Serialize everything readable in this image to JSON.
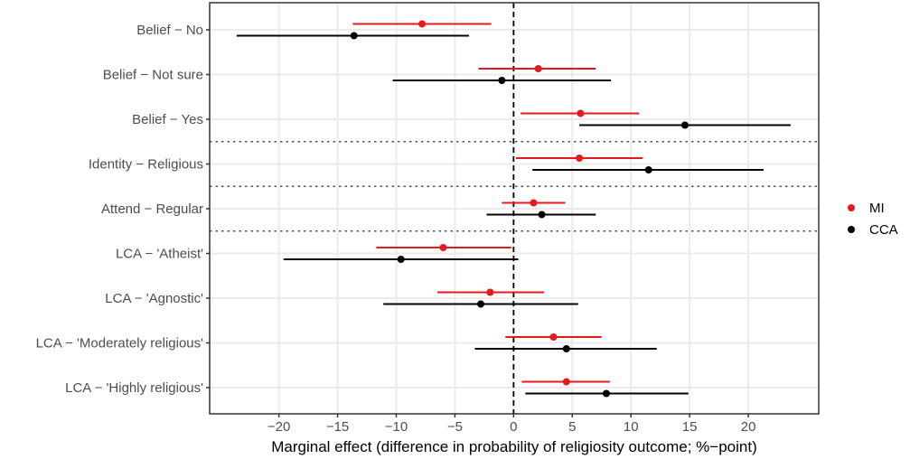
{
  "chart_data": {
    "type": "scatter",
    "subtype": "forest-plot-point-range",
    "title": "",
    "xlabel": "Marginal effect (difference in probability of religiosity outcome; %−point)",
    "ylabel": "",
    "xlim": [
      -25.9,
      26.0
    ],
    "xticks": [
      -20,
      -15,
      -10,
      -5,
      0,
      5,
      10,
      15,
      20
    ],
    "xtick_labels": [
      "−20",
      "−15",
      "−10",
      "−5",
      "0",
      "5",
      "10",
      "15",
      "20"
    ],
    "grid": true,
    "reference_line": {
      "x": 0,
      "style": "dashed"
    },
    "group_separators_after": [
      "Belief − Yes",
      "Identity − Religious",
      "Attend − Regular"
    ],
    "categories": [
      "Belief − No",
      "Belief − Not sure",
      "Belief − Yes",
      "Identity − Religious",
      "Attend − Regular",
      "LCA − 'Atheist'",
      "LCA − 'Agnostic'",
      "LCA − 'Moderately religious'",
      "LCA − 'Highly religious'"
    ],
    "legend": {
      "position": "right"
    },
    "series": [
      {
        "name": "MI",
        "color": "#e41a1c",
        "estimate": [
          -7.8,
          2.1,
          5.7,
          5.6,
          1.7,
          -6.0,
          -2.0,
          3.4,
          4.5
        ],
        "lower": [
          -13.7,
          -3.0,
          0.6,
          0.2,
          -1.0,
          -11.7,
          -6.5,
          -0.7,
          0.7
        ],
        "upper": [
          -1.9,
          7.0,
          10.7,
          11.0,
          4.4,
          -0.2,
          2.6,
          7.5,
          8.2
        ]
      },
      {
        "name": "CCA",
        "color": "#000000",
        "estimate": [
          -13.6,
          -1.0,
          14.6,
          11.5,
          2.4,
          -9.6,
          -2.8,
          4.5,
          7.9
        ],
        "lower": [
          -23.6,
          -10.3,
          5.6,
          1.6,
          -2.3,
          -19.6,
          -11.1,
          -3.3,
          1.0
        ],
        "upper": [
          -3.8,
          8.3,
          23.6,
          21.3,
          7.0,
          0.4,
          5.5,
          12.2,
          14.9
        ]
      }
    ]
  }
}
